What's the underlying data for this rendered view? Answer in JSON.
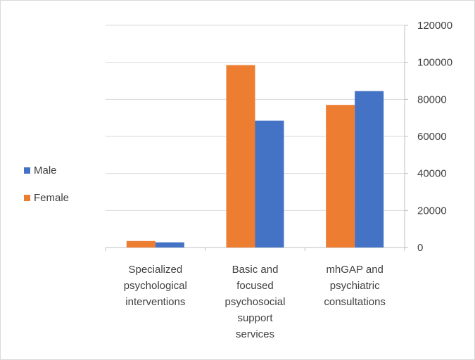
{
  "chart_data": {
    "type": "bar",
    "categories": [
      [
        "Specialized",
        "psychological",
        "interventions"
      ],
      [
        "Basic and",
        "focused",
        "psychosocial",
        "support",
        "services"
      ],
      [
        "mhGAP and",
        "psychiatric",
        "consultations"
      ]
    ],
    "series": [
      {
        "name": "Female",
        "color": "#ED7D31",
        "values": [
          3500,
          98500,
          77000
        ]
      },
      {
        "name": "Male",
        "color": "#4472C4",
        "values": [
          2800,
          68500,
          84500
        ]
      }
    ],
    "legend_order": [
      "Male",
      "Female"
    ],
    "legend_placement": "left",
    "yaxis_position": "right",
    "ylim": [
      0,
      120000
    ],
    "yticks": [
      "0",
      "20000",
      "40000",
      "60000",
      "80000",
      "100000",
      "120000"
    ],
    "grid": true,
    "title": "",
    "xlabel": "",
    "ylabel": ""
  }
}
